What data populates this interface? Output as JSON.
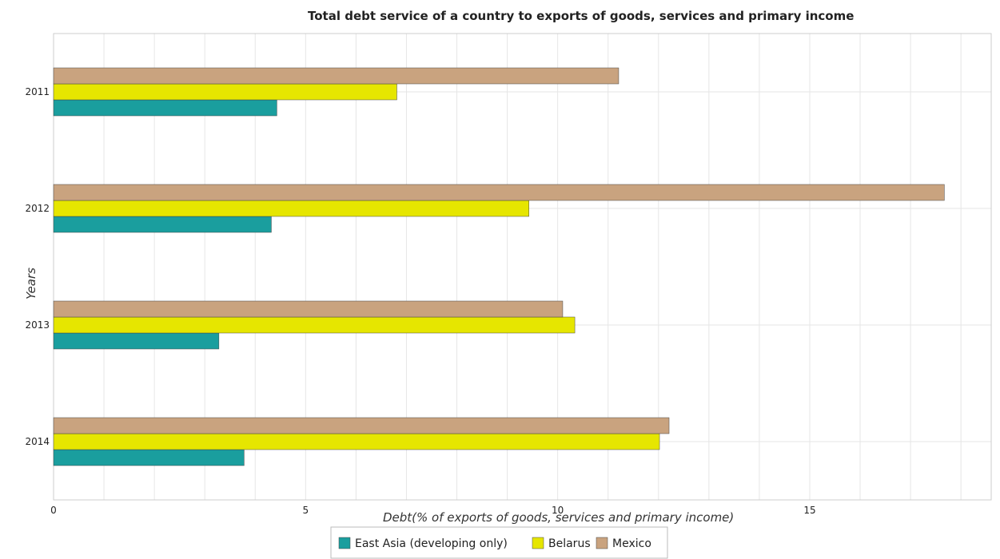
{
  "chart_data": {
    "type": "bar",
    "orientation": "horizontal",
    "title": "Total debt service of a country to exports of goods, services and primary income",
    "xlabel": "Debt(% of exports of goods, services and primary income)",
    "ylabel": "Years",
    "categories": [
      "2011",
      "2012",
      "2013",
      "2014"
    ],
    "series": [
      {
        "name": "East Asia (developing only)",
        "color": "#1a9e9e",
        "values": [
          4.43,
          4.32,
          3.28,
          3.78
        ]
      },
      {
        "name": "Belarus",
        "color": "#e6e600",
        "values": [
          6.81,
          9.43,
          10.34,
          12.02
        ]
      },
      {
        "name": "Mexico",
        "color": "#c9a37f",
        "values": [
          11.21,
          17.67,
          10.1,
          12.21
        ]
      }
    ],
    "xlim": [
      0,
      18.6
    ],
    "xticks": [
      0,
      5,
      10,
      15
    ],
    "grid": true,
    "legend_position": "bottom-center"
  }
}
